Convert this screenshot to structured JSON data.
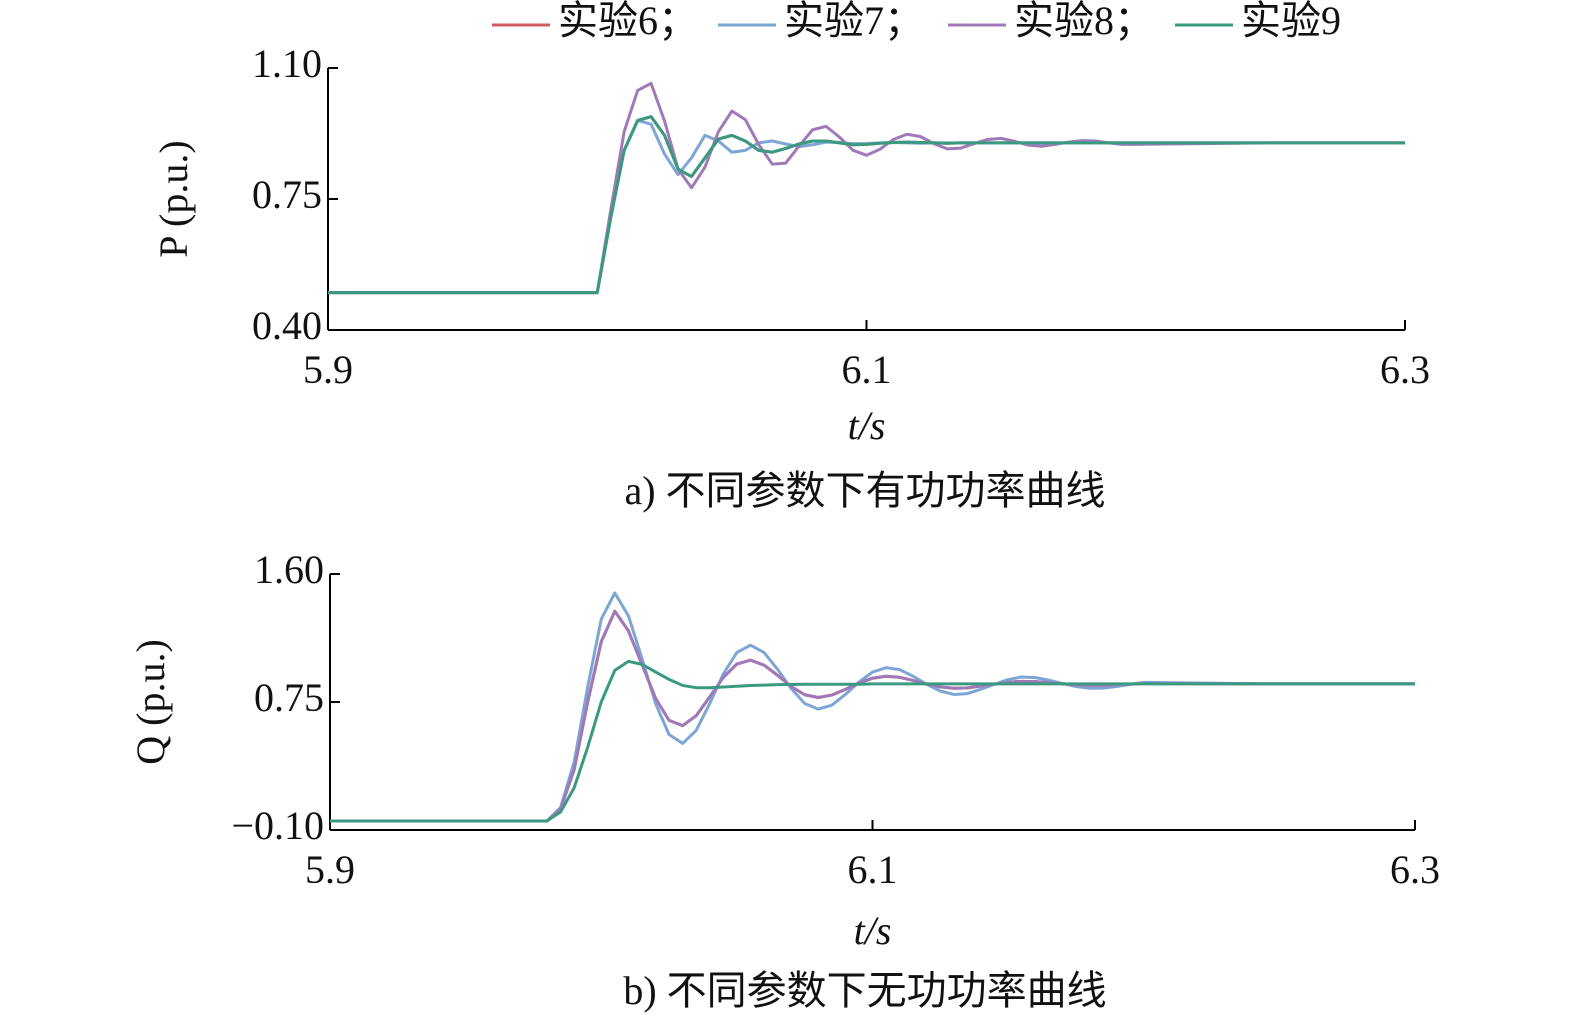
{
  "chart_data": [
    {
      "type": "line",
      "y_label": "P (p.u.)",
      "x_label": "t/s",
      "caption": "a) 不同参数下有功功率曲线",
      "legend": "top",
      "xlim": [
        5.9,
        6.3
      ],
      "xticks": [
        5.9,
        6.1,
        6.3
      ],
      "ylim": [
        0.4,
        1.1
      ],
      "yticks": [
        {
          "value": 0.4,
          "label": "0.40"
        },
        {
          "value": 0.75,
          "label": "0.75"
        },
        {
          "value": 1.1,
          "label": "1.10"
        }
      ],
      "x": [
        5.9,
        6.0,
        6.005,
        6.01,
        6.015,
        6.02,
        6.025,
        6.03,
        6.035,
        6.04,
        6.045,
        6.05,
        6.055,
        6.06,
        6.065,
        6.07,
        6.075,
        6.08,
        6.085,
        6.09,
        6.095,
        6.1,
        6.105,
        6.11,
        6.115,
        6.12,
        6.125,
        6.13,
        6.135,
        6.14,
        6.145,
        6.15,
        6.155,
        6.16,
        6.165,
        6.17,
        6.175,
        6.18,
        6.185,
        6.19,
        6.195,
        6.2,
        6.25,
        6.3
      ],
      "series": [
        {
          "name": "实验6；",
          "color": "#cf5b62",
          "values": [
            0.5,
            0.5,
            0.7,
            0.88,
            0.96,
            0.97,
            0.92,
            0.83,
            0.81,
            0.86,
            0.91,
            0.92,
            0.905,
            0.88,
            0.875,
            0.885,
            0.897,
            0.905,
            0.905,
            0.9,
            0.895,
            0.896,
            0.899,
            0.901,
            0.902,
            0.901,
            0.9,
            0.899,
            0.9,
            0.9,
            0.9,
            0.9,
            0.9,
            0.9,
            0.9,
            0.9,
            0.9,
            0.9,
            0.9,
            0.9,
            0.9,
            0.9,
            0.9,
            0.9
          ]
        },
        {
          "name": "实验7；",
          "color": "#7da6d6",
          "values": [
            0.5,
            0.5,
            0.7,
            0.88,
            0.96,
            0.95,
            0.87,
            0.815,
            0.86,
            0.92,
            0.905,
            0.875,
            0.88,
            0.9,
            0.905,
            0.897,
            0.89,
            0.895,
            0.902,
            0.901,
            0.898,
            0.898,
            0.9,
            0.901,
            0.9,
            0.899,
            0.9,
            0.9,
            0.9,
            0.9,
            0.9,
            0.9,
            0.9,
            0.9,
            0.9,
            0.9,
            0.9,
            0.9,
            0.9,
            0.9,
            0.9,
            0.9,
            0.9,
            0.9
          ]
        },
        {
          "name": "实验8；",
          "color": "#a07ab8",
          "values": [
            0.5,
            0.5,
            0.72,
            0.93,
            1.04,
            1.059,
            0.958,
            0.83,
            0.78,
            0.835,
            0.93,
            0.985,
            0.962,
            0.895,
            0.843,
            0.846,
            0.892,
            0.935,
            0.944,
            0.915,
            0.88,
            0.867,
            0.883,
            0.909,
            0.923,
            0.917,
            0.898,
            0.884,
            0.886,
            0.898,
            0.909,
            0.912,
            0.904,
            0.894,
            0.891,
            0.896,
            0.902,
            0.906,
            0.905,
            0.9,
            0.896,
            0.896,
            0.9,
            0.9
          ]
        },
        {
          "name": "实验9",
          "color": "#3a9a80",
          "values": [
            0.5,
            0.5,
            0.7,
            0.88,
            0.96,
            0.97,
            0.92,
            0.83,
            0.81,
            0.86,
            0.91,
            0.92,
            0.905,
            0.88,
            0.875,
            0.885,
            0.897,
            0.905,
            0.905,
            0.9,
            0.895,
            0.896,
            0.899,
            0.901,
            0.902,
            0.901,
            0.9,
            0.899,
            0.9,
            0.9,
            0.9,
            0.9,
            0.9,
            0.9,
            0.9,
            0.9,
            0.9,
            0.9,
            0.9,
            0.9,
            0.9,
            0.9,
            0.9,
            0.9
          ]
        }
      ]
    },
    {
      "type": "line",
      "y_label": "Q (p.u.)",
      "x_label": "t/s",
      "caption": "b) 不同参数下无功功率曲线",
      "xlim": [
        5.9,
        6.3
      ],
      "xticks": [
        5.9,
        6.1,
        6.3
      ],
      "ylim": [
        -0.1,
        1.6
      ],
      "yticks": [
        {
          "value": -0.1,
          "label": "−0.10"
        },
        {
          "value": 0.75,
          "label": "0.75"
        },
        {
          "value": 1.6,
          "label": "1.60"
        }
      ],
      "x": [
        5.9,
        5.98,
        5.985,
        5.99,
        5.995,
        6.0,
        6.005,
        6.01,
        6.015,
        6.02,
        6.025,
        6.03,
        6.035,
        6.04,
        6.045,
        6.05,
        6.055,
        6.06,
        6.065,
        6.07,
        6.075,
        6.08,
        6.085,
        6.09,
        6.095,
        6.1,
        6.105,
        6.11,
        6.115,
        6.12,
        6.125,
        6.13,
        6.135,
        6.14,
        6.145,
        6.15,
        6.155,
        6.16,
        6.165,
        6.17,
        6.175,
        6.18,
        6.185,
        6.19,
        6.195,
        6.2,
        6.25,
        6.3
      ],
      "series": [
        {
          "color": "#cf5b62",
          "values": [
            -0.04,
            -0.04,
            0.04,
            0.3,
            0.75,
            1.15,
            1.353,
            1.223,
            1.0,
            0.775,
            0.628,
            0.593,
            0.659,
            0.784,
            0.913,
            1.002,
            1.028,
            0.995,
            0.927,
            0.853,
            0.798,
            0.78,
            0.796,
            0.834,
            0.876,
            0.908,
            0.921,
            0.914,
            0.893,
            0.869,
            0.85,
            0.841,
            0.844,
            0.856,
            0.869,
            0.881,
            0.887,
            0.885,
            0.879,
            0.871,
            0.864,
            0.861,
            0.861,
            0.865,
            0.869,
            0.873,
            0.87,
            0.87
          ]
        },
        {
          "color": "#7da6d6",
          "values": [
            -0.04,
            -0.04,
            0.05,
            0.35,
            0.85,
            1.3,
            1.474,
            1.323,
            1.04,
            0.741,
            0.534,
            0.475,
            0.561,
            0.74,
            0.936,
            1.079,
            1.127,
            1.079,
            0.967,
            0.84,
            0.74,
            0.703,
            0.729,
            0.8,
            0.882,
            0.949,
            0.978,
            0.965,
            0.921,
            0.867,
            0.823,
            0.8,
            0.806,
            0.835,
            0.868,
            0.899,
            0.916,
            0.912,
            0.895,
            0.873,
            0.853,
            0.841,
            0.842,
            0.853,
            0.867,
            0.88,
            0.87,
            0.87
          ]
        },
        {
          "color": "#a07ab8",
          "values": [
            -0.04,
            -0.04,
            0.04,
            0.3,
            0.75,
            1.15,
            1.353,
            1.223,
            1.0,
            0.775,
            0.628,
            0.593,
            0.659,
            0.784,
            0.913,
            1.002,
            1.028,
            0.995,
            0.927,
            0.853,
            0.798,
            0.78,
            0.796,
            0.834,
            0.876,
            0.908,
            0.921,
            0.914,
            0.893,
            0.869,
            0.85,
            0.841,
            0.844,
            0.856,
            0.869,
            0.881,
            0.887,
            0.885,
            0.879,
            0.871,
            0.864,
            0.861,
            0.861,
            0.865,
            0.869,
            0.873,
            0.87,
            0.87
          ]
        },
        {
          "color": "#3a9a80",
          "values": [
            -0.04,
            -0.04,
            0.02,
            0.18,
            0.45,
            0.75,
            0.96,
            1.02,
            1.0,
            0.95,
            0.9,
            0.86,
            0.845,
            0.845,
            0.85,
            0.855,
            0.86,
            0.862,
            0.865,
            0.866,
            0.868,
            0.868,
            0.868,
            0.868,
            0.868,
            0.87,
            0.87,
            0.87,
            0.87,
            0.87,
            0.87,
            0.87,
            0.87,
            0.87,
            0.87,
            0.87,
            0.87,
            0.87,
            0.87,
            0.87,
            0.87,
            0.87,
            0.87,
            0.87,
            0.87,
            0.87,
            0.87,
            0.87
          ]
        }
      ]
    }
  ]
}
